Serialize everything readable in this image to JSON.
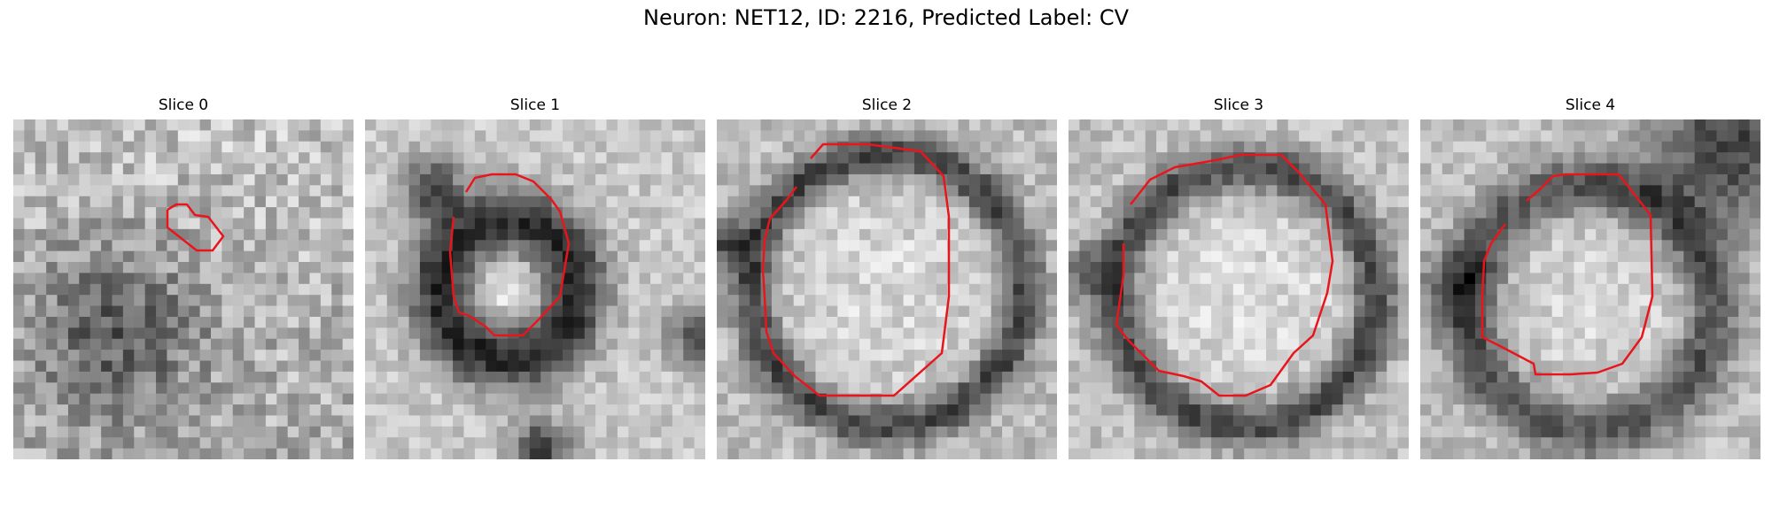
{
  "figure": {
    "title": "Neuron: NET12, ID: 2216, Predicted Label: CV"
  },
  "panels": [
    {
      "title": "Slice 0",
      "image": "noisy grayscale EM patch with small segmentation contour"
    },
    {
      "title": "Slice 1",
      "image": "grayscale EM patch with dark ring and segmentation contour"
    },
    {
      "title": "Slice 2",
      "image": "grayscale EM patch with large round vesicle and segmentation contour"
    },
    {
      "title": "Slice 3",
      "image": "grayscale EM patch with large round vesicle and segmentation contour"
    },
    {
      "title": "Slice 4",
      "image": "grayscale EM patch with vesicle and segmentation contour"
    }
  ],
  "colors": {
    "contour": "#e8161c",
    "background": "#ffffff"
  }
}
